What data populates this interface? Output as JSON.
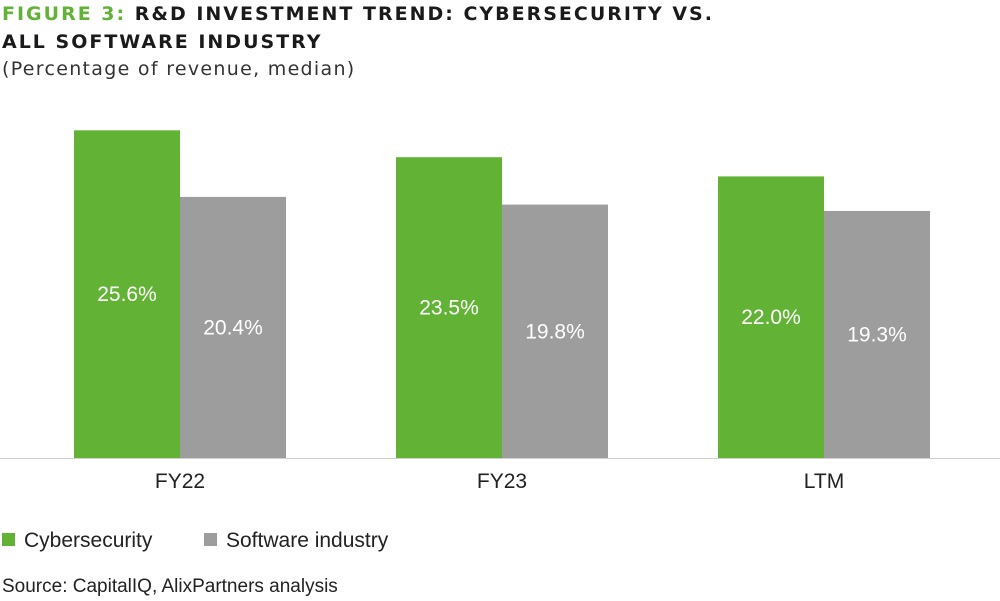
{
  "title": {
    "figure_label": "FIGURE 3:",
    "line1": "R&D INVESTMENT TREND: CYBERSECURITY VS.",
    "line2": "ALL SOFTWARE INDUSTRY"
  },
  "subtitle": "(Percentage of revenue, median)",
  "source": "Source: CapitalIQ, AlixPartners analysis",
  "colors": {
    "cyber": "#62b236",
    "software": "#9d9d9d",
    "accent": "#62b236"
  },
  "chart_data": {
    "type": "bar",
    "title": "R&D INVESTMENT TREND: CYBERSECURITY VS. ALL SOFTWARE INDUSTRY",
    "subtitle": "(Percentage of revenue, median)",
    "categories": [
      "FY22",
      "FY23",
      "LTM"
    ],
    "series": [
      {
        "name": "Cybersecurity",
        "values": [
          25.6,
          23.5,
          22.0
        ],
        "labels": [
          "25.6%",
          "23.5%",
          "22.0%"
        ],
        "color": "#62b236"
      },
      {
        "name": "Software industry",
        "values": [
          20.4,
          19.8,
          19.3
        ],
        "labels": [
          "20.4%",
          "19.8%",
          "19.3%"
        ],
        "color": "#9d9d9d"
      }
    ],
    "xlabel": "",
    "ylabel": "",
    "y_axis_shown": false,
    "grid": false,
    "legend_position": "bottom-left"
  }
}
